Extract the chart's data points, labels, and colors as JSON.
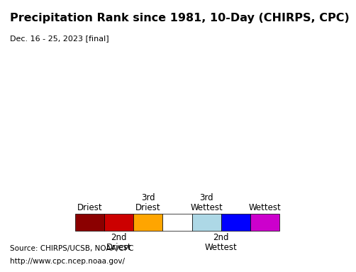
{
  "title": "Precipitation Rank since 1981, 10-Day (CHIRPS, CPC)",
  "subtitle": "Dec. 16 - 25, 2023 [final]",
  "source_line1": "Source: CHIRPS/UCSB, NOAA/CPC",
  "source_line2": "http://www.cpc.ncep.noaa.gov/",
  "legend_colors": [
    "#8B0000",
    "#CC0000",
    "#FFA500",
    "#FFFFFF",
    "#ADD8E6",
    "#0000FF",
    "#CC00CC"
  ],
  "map_bg": "#AADDEE",
  "land_color": "#FFFFFF",
  "border_color": "#000000",
  "legend_bg": "#FFFFFF",
  "source_bg": "#E0E0E0",
  "title_fontsize": 11.5,
  "subtitle_fontsize": 8,
  "legend_fontsize": 8.5,
  "source_fontsize": 7.5
}
